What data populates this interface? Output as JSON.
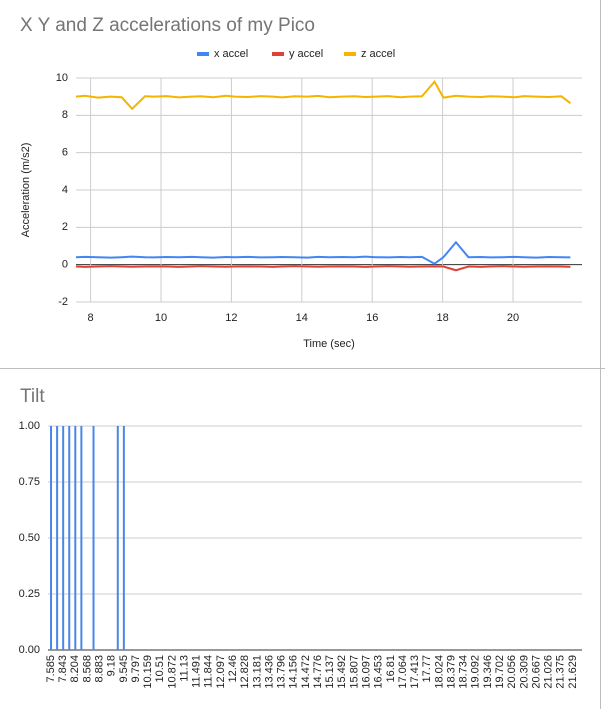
{
  "chart_data": [
    {
      "type": "line",
      "title": "X Y and Z accelerations of my Pico",
      "xlabel": "Time (sec)",
      "ylabel": "Acceleration (m/s2)",
      "x": [
        7.585,
        7.843,
        8.204,
        8.568,
        8.883,
        9.18,
        9.545,
        9.797,
        10.159,
        10.51,
        10.872,
        11.13,
        11.491,
        11.844,
        12.097,
        12.46,
        12.828,
        13.181,
        13.436,
        13.796,
        14.156,
        14.472,
        14.776,
        15.137,
        15.492,
        15.807,
        16.097,
        16.453,
        16.81,
        17.064,
        17.413,
        17.77,
        18.024,
        18.379,
        18.734,
        19.092,
        19.346,
        19.702,
        20.056,
        20.309,
        20.667,
        21.026,
        21.375,
        21.629
      ],
      "series": [
        {
          "name": "x accel",
          "color": "#4285f4",
          "values": [
            0.4,
            0.42,
            0.4,
            0.38,
            0.4,
            0.43,
            0.4,
            0.39,
            0.41,
            0.4,
            0.42,
            0.4,
            0.38,
            0.41,
            0.4,
            0.42,
            0.39,
            0.4,
            0.41,
            0.4,
            0.38,
            0.42,
            0.4,
            0.41,
            0.4,
            0.43,
            0.4,
            0.39,
            0.41,
            0.4,
            0.42,
            0.05,
            0.4,
            1.2,
            0.4,
            0.41,
            0.39,
            0.4,
            0.42,
            0.4,
            0.38,
            0.41,
            0.4,
            0.39
          ]
        },
        {
          "name": "y accel",
          "color": "#db4437",
          "values": [
            -0.1,
            -0.12,
            -0.1,
            -0.08,
            -0.1,
            -0.11,
            -0.1,
            -0.09,
            -0.1,
            -0.12,
            -0.1,
            -0.08,
            -0.1,
            -0.11,
            -0.1,
            -0.09,
            -0.1,
            -0.12,
            -0.1,
            -0.08,
            -0.1,
            -0.11,
            -0.1,
            -0.09,
            -0.1,
            -0.12,
            -0.1,
            -0.08,
            -0.1,
            -0.11,
            -0.1,
            -0.09,
            -0.1,
            -0.3,
            -0.1,
            -0.12,
            -0.1,
            -0.08,
            -0.1,
            -0.11,
            -0.1,
            -0.09,
            -0.1,
            -0.12
          ]
        },
        {
          "name": "z accel",
          "color": "#f4b400",
          "values": [
            9.0,
            9.05,
            8.95,
            9.0,
            8.97,
            8.35,
            9.02,
            9.0,
            9.03,
            8.96,
            9.0,
            9.02,
            8.97,
            9.05,
            9.0,
            8.98,
            9.03,
            9.0,
            8.96,
            9.02,
            9.0,
            9.04,
            8.97,
            9.0,
            9.02,
            8.98,
            9.0,
            9.03,
            8.97,
            9.0,
            9.02,
            9.8,
            8.95,
            9.05,
            9.0,
            8.98,
            9.02,
            9.0,
            8.97,
            9.03,
            9.0,
            8.98,
            9.02,
            8.65
          ]
        }
      ],
      "xlim": [
        7.585,
        21.96
      ],
      "xticks": [
        8,
        10,
        12,
        14,
        16,
        18,
        20
      ],
      "ylim": [
        -2,
        10
      ],
      "yticks": [
        -2,
        0,
        2,
        4,
        6,
        8,
        10
      ],
      "grid": true,
      "legend": "top"
    },
    {
      "type": "bar",
      "title": "Tilt",
      "color": "#4a86e8",
      "categories": [
        "7.585",
        null,
        "7.843",
        null,
        "8.204",
        null,
        "8.568",
        null,
        "8.883",
        null,
        "9.18",
        null,
        "9.545",
        null,
        "9.797",
        null,
        "10.159",
        null,
        "10.51",
        null,
        "10.872",
        null,
        "11.13",
        null,
        "11.491",
        null,
        "11.844",
        null,
        "12.097",
        null,
        "12.46",
        null,
        "12.828",
        null,
        "13.181",
        null,
        "13.436",
        null,
        "13.796",
        null,
        "14.156",
        null,
        "14.472",
        null,
        "14.776",
        null,
        "15.137",
        null,
        "15.492",
        null,
        "15.807",
        null,
        "16.097",
        null,
        "16.453",
        null,
        "16.81",
        null,
        "17.064",
        null,
        "17.413",
        null,
        "17.77",
        null,
        "18.024",
        null,
        "18.379",
        null,
        "18.734",
        null,
        "19.092",
        null,
        "19.346",
        null,
        "19.702",
        null,
        "20.056",
        null,
        "20.309",
        null,
        "20.667",
        null,
        "21.026",
        null,
        "21.375",
        null,
        "21.629",
        null
      ],
      "values": [
        1,
        1,
        1,
        1,
        1,
        1,
        0,
        1,
        0,
        0,
        0,
        1,
        1,
        0,
        0,
        0,
        0,
        0,
        0,
        0,
        0,
        0,
        0,
        0,
        0,
        0,
        0,
        0,
        0,
        0,
        0,
        0,
        0,
        0,
        0,
        0,
        0,
        0,
        0,
        0,
        0,
        0,
        0,
        0,
        0,
        0,
        0,
        0,
        0,
        0,
        0,
        0,
        0,
        0,
        0,
        0,
        0,
        0,
        0,
        0,
        0,
        0,
        0,
        0,
        0,
        0,
        0,
        0,
        0,
        0,
        0,
        0,
        0,
        0,
        0,
        0,
        0,
        0,
        0,
        0,
        0,
        0,
        0,
        0,
        0,
        0,
        0,
        0
      ],
      "ylim": [
        0,
        1
      ],
      "yticks": [
        {
          "value": 0,
          "label": "0.00"
        },
        {
          "value": 0.25,
          "label": "0.25"
        },
        {
          "value": 0.5,
          "label": "0.50"
        },
        {
          "value": 0.75,
          "label": "0.75"
        },
        {
          "value": 1,
          "label": "1.00"
        }
      ],
      "grid": true
    }
  ]
}
